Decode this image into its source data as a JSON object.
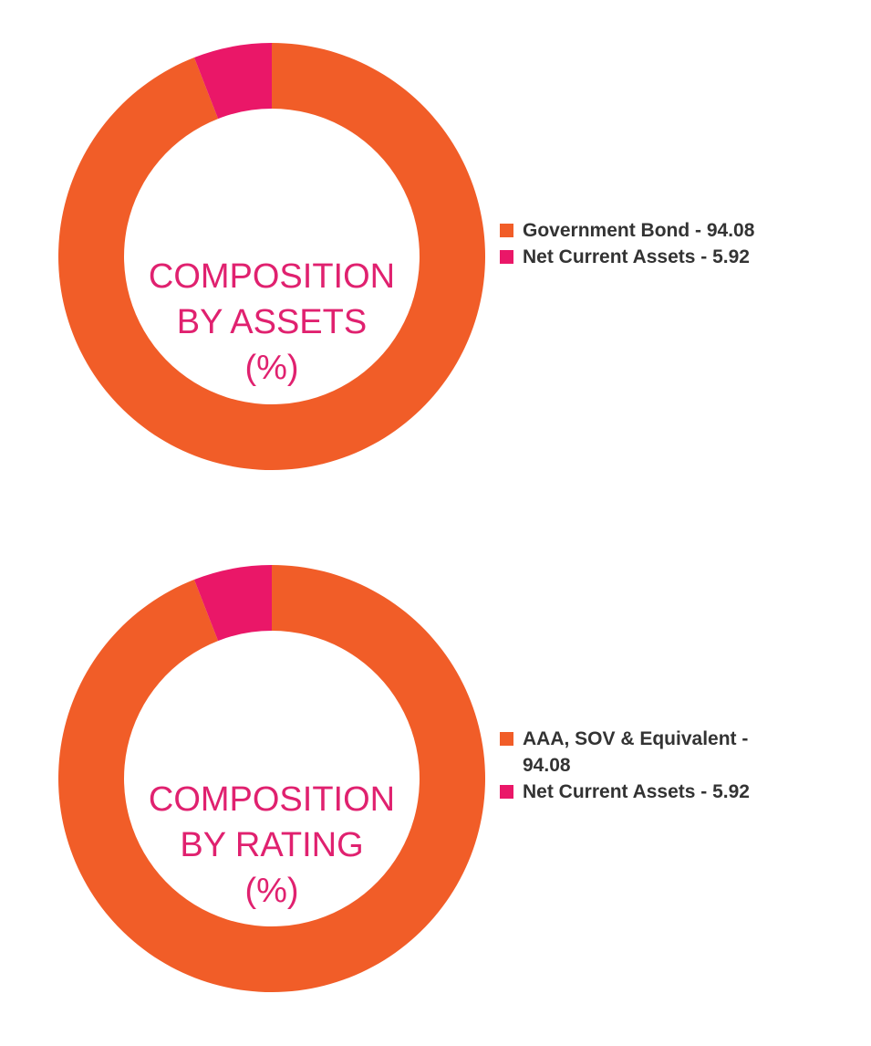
{
  "colors": {
    "primary": "#f15d28",
    "secondary": "#ea1768",
    "label": "#e0216f",
    "legend_text": "#333333"
  },
  "chart_data": [
    {
      "type": "pie",
      "variant": "donut",
      "title_lines": [
        "COMPOSITION",
        "BY ASSETS",
        "(%)"
      ],
      "categories": [
        "Government Bond",
        "Net Current Assets"
      ],
      "values": [
        94.08,
        5.92
      ],
      "colors": [
        "#f15d28",
        "#ea1768"
      ],
      "legend": [
        {
          "text": "Government Bond - 94.08",
          "color": "#f15d28"
        },
        {
          "text": "Net Current Assets - 5.92",
          "color": "#ea1768"
        }
      ],
      "legend_position": "right"
    },
    {
      "type": "pie",
      "variant": "donut",
      "title_lines": [
        "COMPOSITION",
        "BY RATING",
        "(%)"
      ],
      "categories": [
        "AAA, SOV & Equivalent",
        "Net Current Assets"
      ],
      "values": [
        94.08,
        5.92
      ],
      "colors": [
        "#f15d28",
        "#ea1768"
      ],
      "legend": [
        {
          "text": "AAA, SOV & Equivalent - 94.08",
          "color": "#f15d28"
        },
        {
          "text": "Net Current Assets - 5.92",
          "color": "#ea1768"
        }
      ],
      "legend_position": "right"
    }
  ]
}
